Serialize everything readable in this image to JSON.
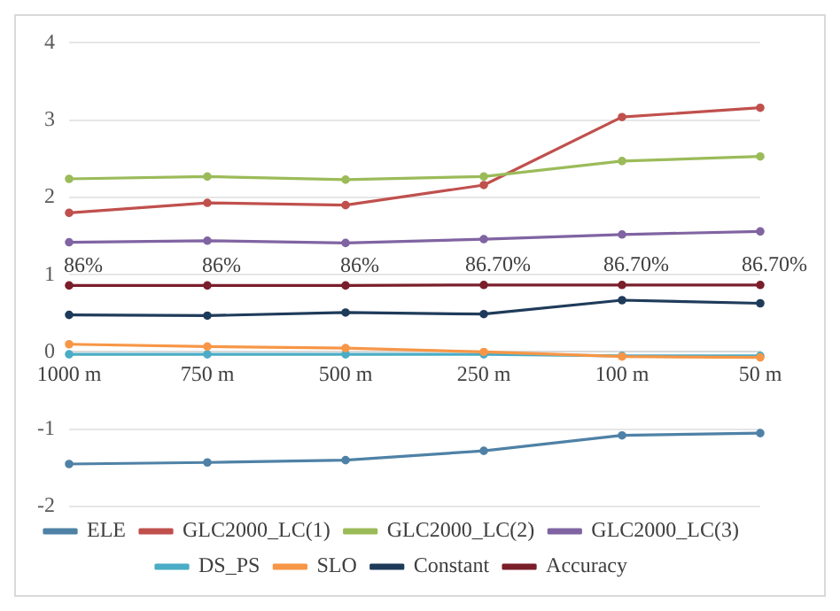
{
  "chart_data": {
    "type": "line",
    "categories": [
      "1000 m",
      "750 m",
      "500 m",
      "250 m",
      "100 m",
      "50 m"
    ],
    "series": [
      {
        "name": "ELE",
        "color": "#4f81a6",
        "values": [
          -1.45,
          -1.43,
          -1.4,
          -1.28,
          -1.08,
          -1.05
        ]
      },
      {
        "name": "GLC2000_LC(1)",
        "color": "#c0504d",
        "values": [
          1.8,
          1.93,
          1.9,
          2.16,
          3.04,
          3.16
        ]
      },
      {
        "name": "GLC2000_LC(2)",
        "color": "#9bbb59",
        "values": [
          2.24,
          2.27,
          2.23,
          2.27,
          2.47,
          2.53
        ]
      },
      {
        "name": "GLC2000_LC(3)",
        "color": "#8064a2",
        "values": [
          1.42,
          1.44,
          1.41,
          1.46,
          1.52,
          1.56
        ]
      },
      {
        "name": "DS_PS",
        "color": "#4bacc6",
        "values": [
          -0.03,
          -0.03,
          -0.03,
          -0.03,
          -0.05,
          -0.05
        ]
      },
      {
        "name": "SLO",
        "color": "#f79646",
        "values": [
          0.1,
          0.07,
          0.05,
          0.0,
          -0.06,
          -0.07
        ]
      },
      {
        "name": "Constant",
        "color": "#1f3b5a",
        "values": [
          0.48,
          0.47,
          0.51,
          0.49,
          0.67,
          0.63
        ]
      },
      {
        "name": "Accuracy",
        "color": "#7a1f2b",
        "values": [
          0.86,
          0.86,
          0.86,
          0.867,
          0.867,
          0.867
        ],
        "value_labels": [
          "86%",
          "86%",
          "86%",
          "86.70%",
          "86.70%",
          "86.70%"
        ]
      }
    ],
    "ylim": [
      -2,
      4
    ],
    "yticks": [
      -2,
      -1,
      0,
      1,
      2,
      3,
      4
    ],
    "grid": "y",
    "legend": "bottom",
    "marker": "circle",
    "line_style": "solid"
  }
}
